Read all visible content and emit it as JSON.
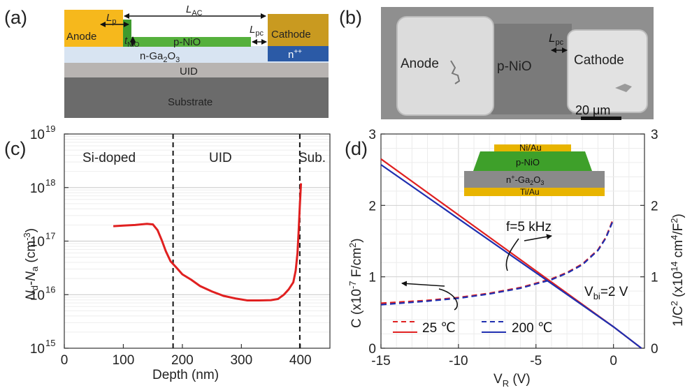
{
  "panel_labels": {
    "a": "(a)",
    "b": "(b)",
    "c": "(c)",
    "d": "(d)"
  },
  "colors": {
    "red": "#e02020",
    "blue": "#1f2fb0",
    "gold": "#e8b400",
    "green": "#3ea02a",
    "navy": "#2a58a8"
  },
  "panel_a": {
    "anode": "Anode",
    "cathode": "Cathode",
    "pnio": "p-NiO",
    "nga2o3": "n-Ga",
    "nga2o3_sub": "2",
    "nga2o3_tail": "O",
    "nga2o3_sub2": "3",
    "uid": "UID",
    "substrate": "Substrate",
    "npp": "n",
    "npp_sup": "++",
    "lp": "L",
    "lp_sub": "p",
    "lac": "L",
    "lac_sub": "AC",
    "lpc": "L",
    "lpc_sub": "pc",
    "tnio": "t",
    "tnio_sub": "NiO"
  },
  "panel_b": {
    "anode": "Anode",
    "pnio": "p-NiO",
    "cathode": "Cathode",
    "lpc": "L",
    "lpc_sub": "pc",
    "scale": "20 μm"
  },
  "panel_c": {
    "region_si": "Si-doped",
    "region_uid": "UID",
    "region_sub": "Sub.",
    "xlabel": "Depth (nm)",
    "ylabel_n": "N",
    "ylabel_d": "d",
    "ylabel_mid": "-",
    "ylabel_a": "a",
    "ylabel_tail": " (cm",
    "ylabel_exp": "-3",
    "ylabel_close": ")",
    "x_ticks": [
      "0",
      "100",
      "200",
      "300",
      "400"
    ],
    "y_ticks": [
      "10",
      "10",
      "10",
      "10",
      "10"
    ],
    "y_exps": [
      "15",
      "16",
      "17",
      "18",
      "19"
    ]
  },
  "panel_d": {
    "inset_niau": "Ni/Au",
    "inset_pnio": "p-NiO",
    "inset_nga": "n",
    "inset_nga_sup": "+",
    "inset_nga_tail": "-Ga",
    "inset_nga_sub": "2",
    "inset_nga_o": "O",
    "inset_nga_sub2": "3",
    "inset_tiau": "Ti/Au",
    "freq": "f=5 kHz",
    "vbi": "V",
    "vbi_sub": "bi",
    "vbi_tail": "=2 V",
    "legend_25": "25 ℃",
    "legend_200": "200 ℃",
    "xlabel": "V",
    "xlabel_sub": "R",
    "xlabel_tail": " (V)",
    "ylabel_left": "C (x10",
    "ylabel_left_exp": "-7",
    "ylabel_left_tail": " F/cm",
    "ylabel_left_exp2": "2",
    "ylabel_left_close": ")",
    "ylabel_right": "1/C",
    "ylabel_right_exp": "2",
    "ylabel_right_mid": " (x10",
    "ylabel_right_exp2": "14",
    "ylabel_right_tail": " cm",
    "ylabel_right_exp3": "4",
    "ylabel_right_mid2": "/F",
    "ylabel_right_exp4": "2",
    "ylabel_right_close": ")",
    "x_ticks": [
      "-15",
      "-10",
      "-5",
      "0"
    ],
    "yl_ticks": [
      "0",
      "1",
      "2",
      "3"
    ],
    "yr_ticks": [
      "0",
      "1",
      "2",
      "3"
    ]
  },
  "chart_data": [
    {
      "type": "line",
      "panel": "c",
      "xlabel": "Depth (nm)",
      "ylabel": "Nd-Na (cm-3)",
      "yscale": "log",
      "xlim": [
        0,
        450
      ],
      "ylim": [
        1000000000000000.0,
        1e+19
      ],
      "annotations": [
        "Si-doped",
        "UID",
        "Sub."
      ],
      "boundaries_nm": [
        185,
        400
      ],
      "series": [
        {
          "color": "#e02020",
          "x": [
            83,
            100,
            120,
            140,
            150,
            158,
            165,
            172,
            180,
            190,
            200,
            215,
            230,
            250,
            270,
            290,
            310,
            330,
            350,
            362,
            372,
            380,
            388,
            392,
            395,
            397,
            399,
            401
          ],
          "y": [
            1.9e+17,
            1.95e+17,
            2e+17,
            2.1e+17,
            2.05e+17,
            1.6e+17,
            1.05e+17,
            6.5e+16,
            4.2e+16,
            3.2e+16,
            2.4e+16,
            1.9e+16,
            1.45e+16,
            1.15e+16,
            9500000000000000.0,
            8500000000000000.0,
            7800000000000000.0,
            7800000000000000.0,
            7900000000000000.0,
            8300000000000000.0,
            1e+16,
            1.25e+16,
            1.7e+16,
            2.8e+16,
            6e+16,
            1.5e+17,
            4.5e+17,
            1.2e+18
          ]
        }
      ]
    },
    {
      "type": "line",
      "panel": "d",
      "xlabel": "VR (V)",
      "ylabel": "C (x10-7 F/cm2)",
      "y2label": "1/C2 (x1014 cm4/F2)",
      "xlim": [
        -15,
        2
      ],
      "ylim": [
        0,
        3
      ],
      "y2lim": [
        0,
        3
      ],
      "series": [
        {
          "name": "25 ℃",
          "axis": "left",
          "style": "dashed",
          "color": "#e02020",
          "x": [
            -15,
            -12,
            -10,
            -8,
            -6,
            -4,
            -3,
            -2,
            -1,
            -0.5,
            0
          ],
          "y": [
            0.63,
            0.67,
            0.71,
            0.77,
            0.85,
            0.97,
            1.06,
            1.18,
            1.38,
            1.55,
            1.82
          ]
        },
        {
          "name": "200 ℃",
          "axis": "left",
          "style": "dashed",
          "color": "#1f2fb0",
          "x": [
            -15,
            -12,
            -10,
            -8,
            -6,
            -4,
            -3,
            -2,
            -1,
            -0.5,
            0
          ],
          "y": [
            0.61,
            0.66,
            0.7,
            0.76,
            0.84,
            0.96,
            1.05,
            1.17,
            1.37,
            1.54,
            1.8
          ]
        },
        {
          "name": "25 ℃",
          "axis": "right",
          "style": "solid",
          "color": "#e02020",
          "x": [
            -15,
            0,
            1.8
          ],
          "y": [
            2.65,
            0.3,
            0.0
          ]
        },
        {
          "name": "200 ℃",
          "axis": "right",
          "style": "solid",
          "color": "#1f2fb0",
          "x": [
            -15,
            0,
            1.8
          ],
          "y": [
            2.57,
            0.3,
            0.0
          ]
        }
      ],
      "annotations": [
        "f=5 kHz",
        "Vbi=2 V"
      ]
    }
  ]
}
